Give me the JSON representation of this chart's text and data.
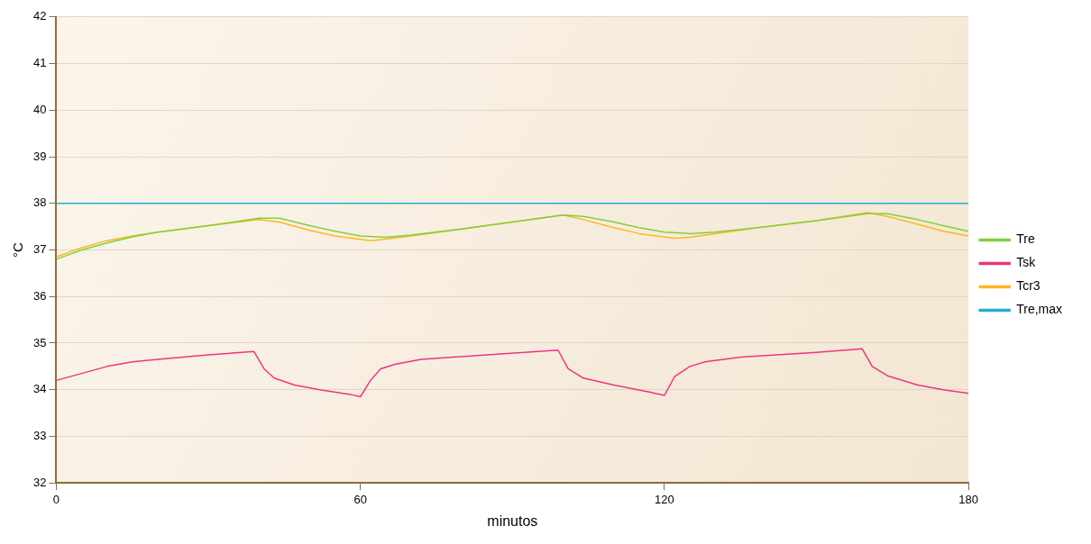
{
  "chart_data": {
    "type": "line",
    "xlabel": "minutos",
    "ylabel": "°C",
    "xlim": [
      0,
      180
    ],
    "xticks": [
      0,
      60,
      120,
      180
    ],
    "ylim": [
      32,
      42
    ],
    "yticks": [
      32,
      33,
      34,
      35,
      36,
      37,
      38,
      39,
      40,
      41,
      42
    ],
    "grid": "y",
    "legend": "right",
    "marker": "none",
    "line_style": "solid",
    "series": [
      {
        "name": "Tre",
        "color": "#7fd13b",
        "x": [
          0,
          5,
          10,
          15,
          20,
          30,
          40,
          44,
          50,
          55,
          60,
          65,
          70,
          80,
          90,
          100,
          104,
          110,
          115,
          120,
          125,
          130,
          140,
          150,
          160,
          164,
          170,
          175,
          180
        ],
        "values": [
          36.8,
          37.0,
          37.15,
          37.28,
          37.38,
          37.52,
          37.68,
          37.68,
          37.52,
          37.4,
          37.3,
          37.27,
          37.32,
          37.45,
          37.6,
          37.75,
          37.72,
          37.6,
          37.48,
          37.38,
          37.35,
          37.38,
          37.5,
          37.63,
          37.78,
          37.78,
          37.65,
          37.52,
          37.4
        ]
      },
      {
        "name": "Tsk",
        "color": "#f0347f",
        "x": [
          0,
          5,
          10,
          15,
          20,
          30,
          39,
          41,
          43,
          47,
          52,
          58,
          60,
          62,
          64,
          67,
          72,
          85,
          99,
          101,
          104,
          110,
          117,
          120,
          122,
          125,
          128,
          135,
          150,
          159,
          161,
          164,
          170,
          175,
          180
        ],
        "values": [
          34.2,
          34.35,
          34.5,
          34.6,
          34.65,
          34.75,
          34.82,
          34.45,
          34.25,
          34.1,
          34.0,
          33.9,
          33.85,
          34.2,
          34.45,
          34.55,
          34.65,
          34.75,
          34.85,
          34.45,
          34.25,
          34.1,
          33.95,
          33.88,
          34.28,
          34.5,
          34.6,
          34.7,
          34.8,
          34.88,
          34.5,
          34.3,
          34.1,
          34.0,
          33.92
        ]
      },
      {
        "name": "Tcr3",
        "color": "#ffb61e",
        "x": [
          0,
          5,
          10,
          15,
          20,
          30,
          40,
          44,
          50,
          55,
          62,
          65,
          70,
          80,
          90,
          100,
          104,
          110,
          115,
          122,
          125,
          130,
          140,
          150,
          160,
          164,
          170,
          175,
          180
        ],
        "values": [
          36.85,
          37.05,
          37.2,
          37.3,
          37.38,
          37.52,
          37.65,
          37.6,
          37.42,
          37.3,
          37.2,
          37.23,
          37.3,
          37.45,
          37.6,
          37.75,
          37.65,
          37.48,
          37.35,
          37.25,
          37.27,
          37.35,
          37.5,
          37.63,
          37.8,
          37.72,
          37.55,
          37.4,
          37.3
        ]
      },
      {
        "name": "Tre,max",
        "color": "#1fb0d8",
        "x": [
          0,
          180
        ],
        "values": [
          38,
          38
        ]
      }
    ]
  }
}
